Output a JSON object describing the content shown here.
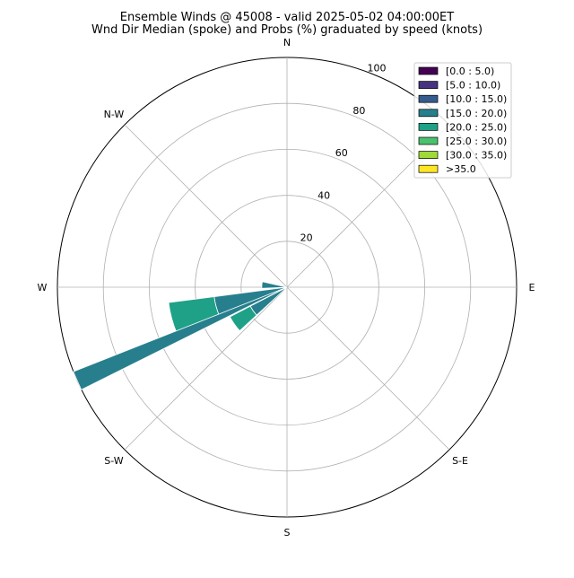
{
  "chart_data": {
    "type": "windrose",
    "title": "Ensemble Winds @ 45008 - valid 2025-05-02 04:00:00ET",
    "subtitle": "Wnd Dir Median (spoke) and Probs (%) graduated by speed (knots)",
    "direction_labels": [
      "N",
      "N-W",
      "W",
      "S-W",
      "S",
      "S-E",
      "E"
    ],
    "radial_ticks": [
      20,
      40,
      60,
      80,
      100
    ],
    "radial_max": 100,
    "grid": true,
    "legend_position": "top-right",
    "speed_bins": [
      {
        "label": "[0.0 : 5.0)",
        "color": "#440154"
      },
      {
        "label": "[5.0 : 10.0)",
        "color": "#46327e"
      },
      {
        "label": "[10.0 : 15.0)",
        "color": "#365c8d"
      },
      {
        "label": "[15.0 : 20.0)",
        "color": "#277f8e"
      },
      {
        "label": "[20.0 : 25.0)",
        "color": "#1fa187"
      },
      {
        "label": "[25.0 : 30.0)",
        "color": "#4ac16d"
      },
      {
        "label": "[30.0 : 35.0)",
        "color": "#a0da39"
      },
      {
        "label": ">35.0",
        "color": "#fde725"
      }
    ],
    "sectors": [
      {
        "direction_deg": 275,
        "segments": [
          {
            "bin": 2,
            "from": 0,
            "to": 1
          },
          {
            "bin": 3,
            "from": 1,
            "to": 11
          }
        ]
      },
      {
        "direction_deg": 255,
        "segments": [
          {
            "bin": 3,
            "from": 0,
            "to": 32
          },
          {
            "bin": 4,
            "from": 32,
            "to": 52
          }
        ]
      },
      {
        "direction_deg": 235,
        "segments": [
          {
            "bin": 3,
            "from": 0,
            "to": 18
          },
          {
            "bin": 4,
            "from": 18,
            "to": 28
          }
        ]
      }
    ],
    "median_spoke": {
      "direction_deg": 246,
      "length": 100,
      "color": "#277f8e"
    }
  }
}
